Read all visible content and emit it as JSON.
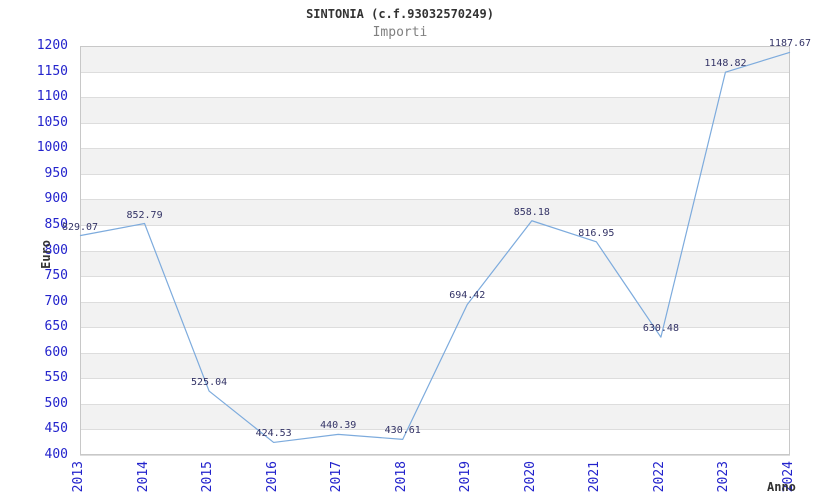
{
  "colors": {
    "title": "#333333",
    "subtitle": "#808080",
    "axis_label": "#2323cc",
    "axis_title": "#333333",
    "point_label": "#333366",
    "line": "#7dabdd",
    "band": "#f2f2f2",
    "band_alt": "#ffffff",
    "grid": "#dddddd",
    "border": "#c8c8c8",
    "background": "#ffffff"
  },
  "header": {
    "title": "SINTONIA (c.f.93032570249)",
    "subtitle": "Importi"
  },
  "chart_data": {
    "type": "line",
    "title": "SINTONIA (c.f.93032570249)",
    "subtitle": "Importi",
    "xlabel": "Anno",
    "ylabel": "Euro",
    "categories": [
      "2013",
      "2014",
      "2015",
      "2016",
      "2017",
      "2018",
      "2019",
      "2020",
      "2021",
      "2022",
      "2023",
      "2024"
    ],
    "values": [
      829.07,
      852.79,
      525.04,
      424.53,
      440.39,
      430.61,
      694.42,
      858.18,
      816.95,
      630.48,
      1148.82,
      1187.67
    ],
    "point_labels": [
      "829.07",
      "852.79",
      "525.04",
      "424.53",
      "440.39",
      "430.61",
      "694.42",
      "858.18",
      "816.95",
      "630.48",
      "1148.82",
      "1187.67"
    ],
    "ylim": [
      400,
      1200
    ],
    "ytick_step": 50,
    "grid": "alternating-horizontal-bands",
    "legend": "none"
  }
}
